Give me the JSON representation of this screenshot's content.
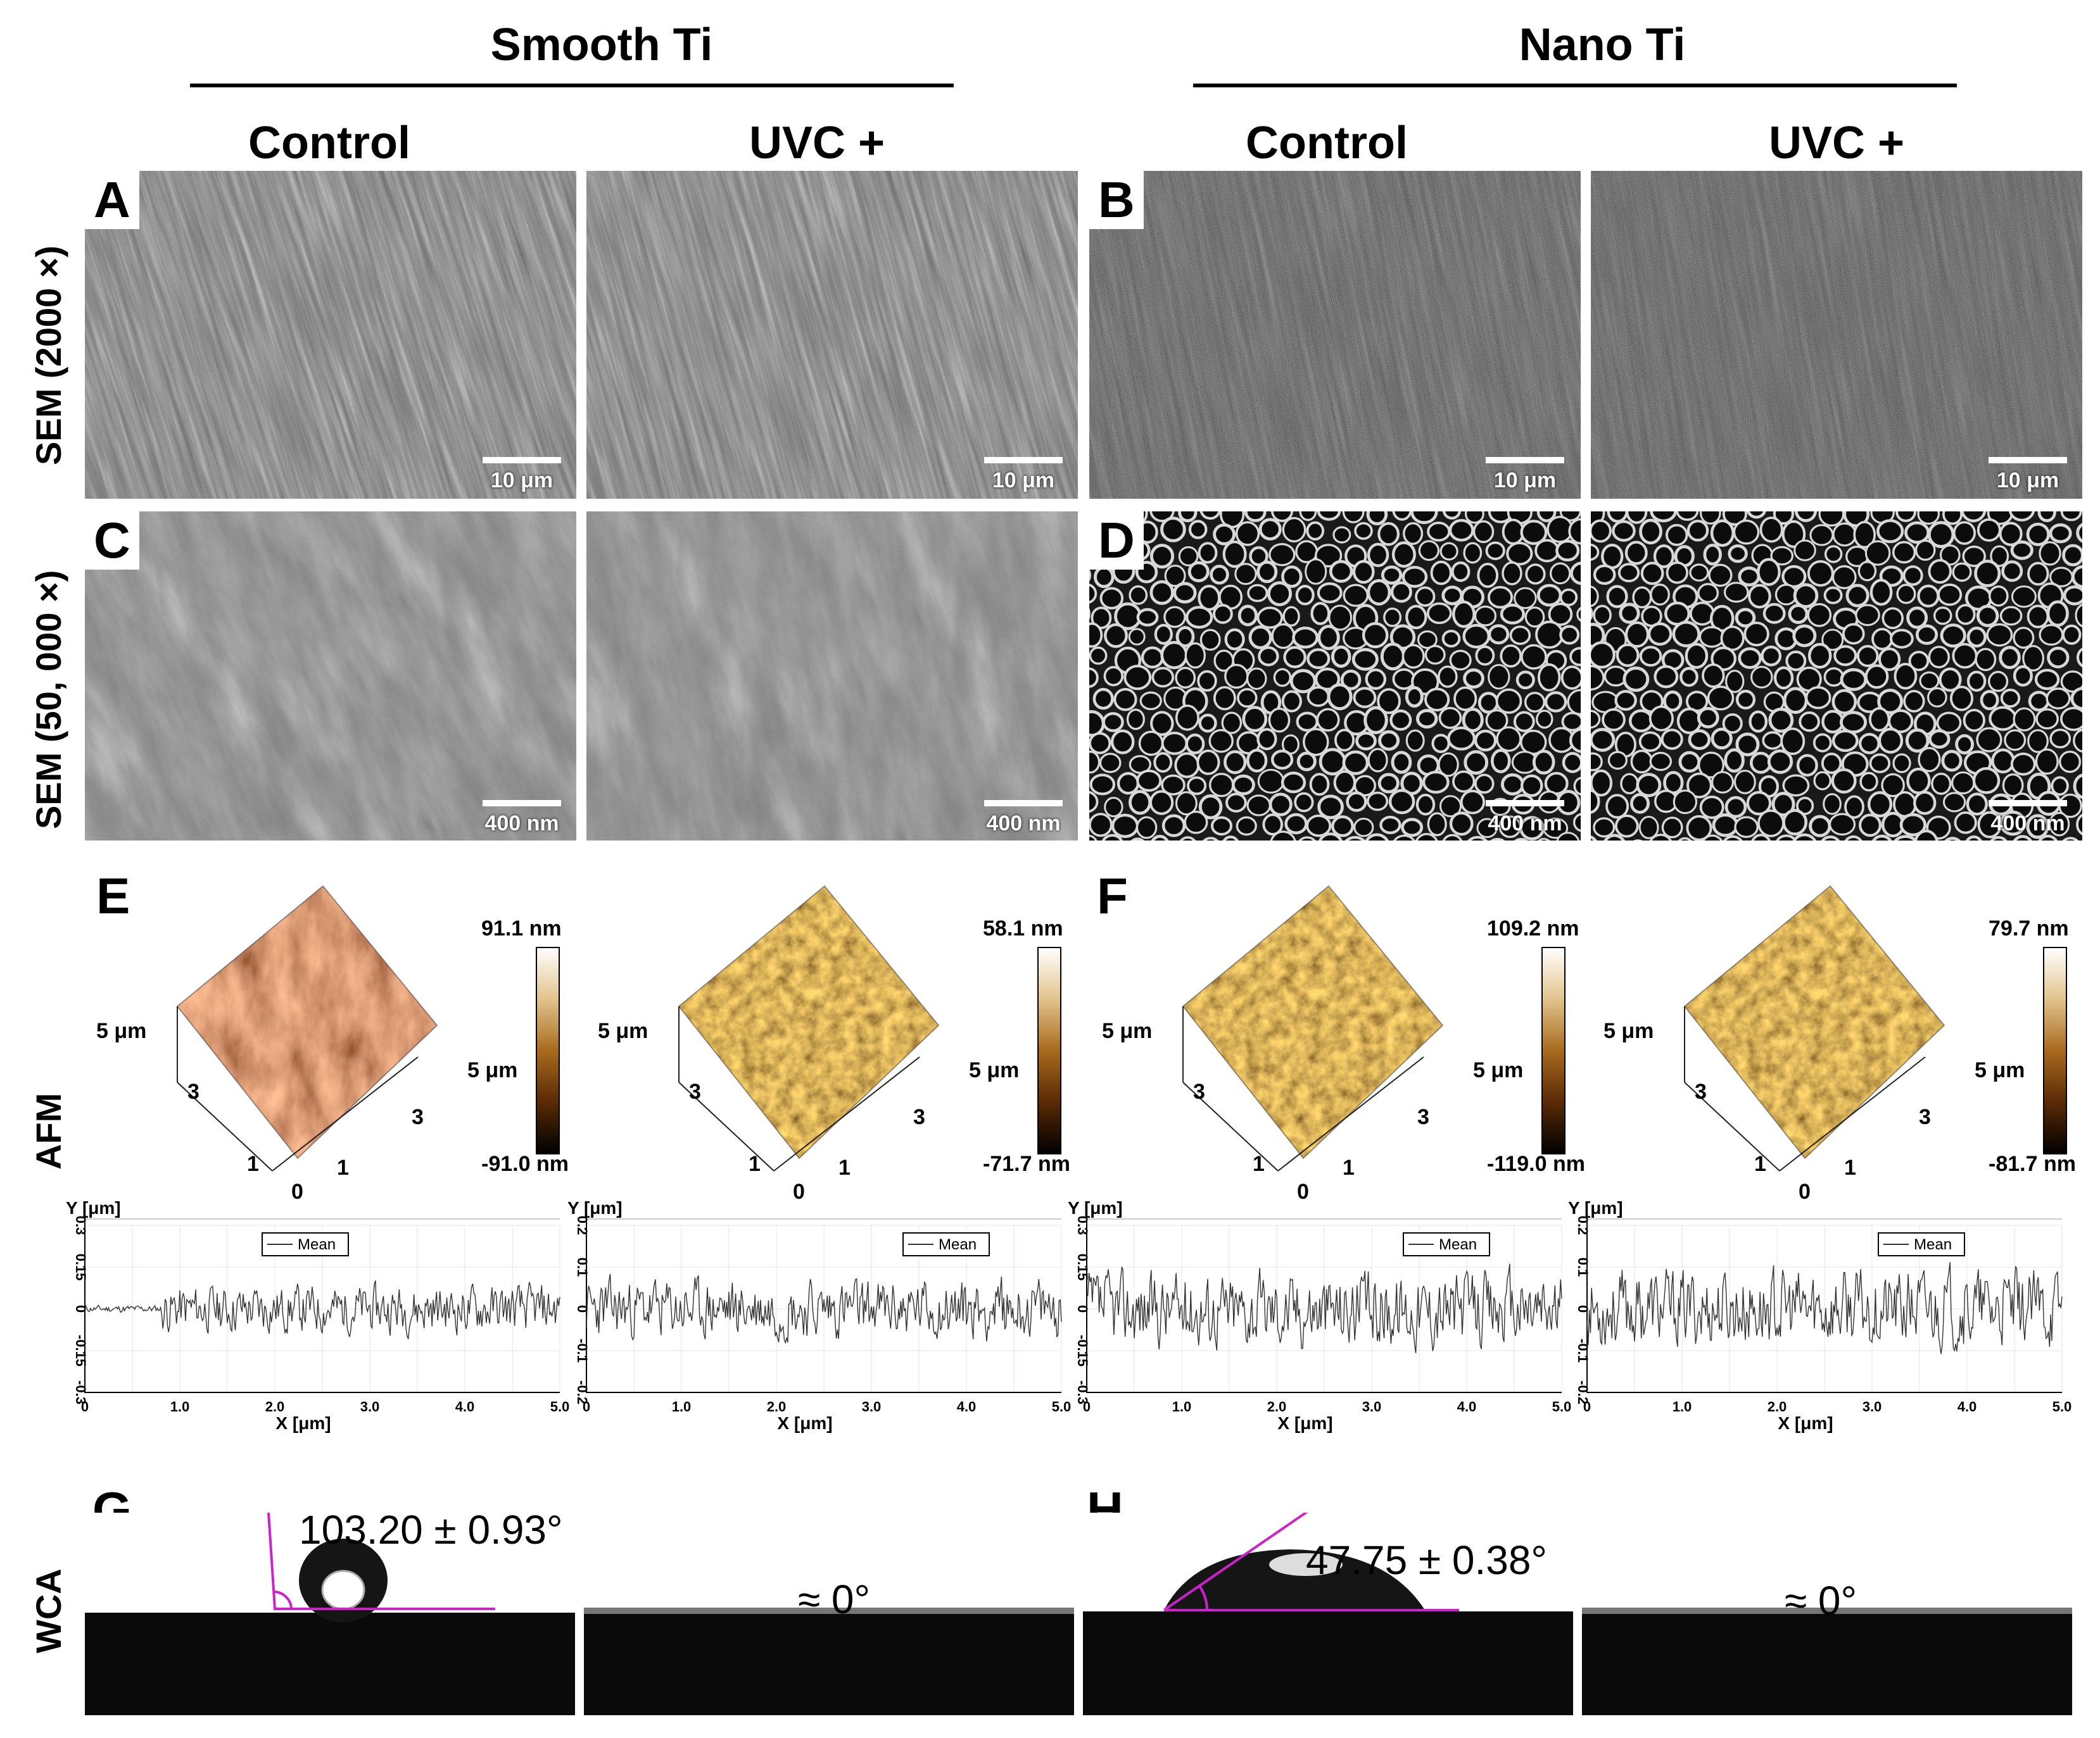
{
  "groups": [
    {
      "title": "Smooth Ti"
    },
    {
      "title": "Nano Ti"
    }
  ],
  "columns": [
    "Control",
    "UVC +",
    "Control",
    "UVC +"
  ],
  "row_labels": {
    "sem_low": "SEM (2000 ×)",
    "sem_high": "SEM (50, 000 ×)",
    "afm": "AFM",
    "wca": "WCA"
  },
  "panel_letters": {
    "A": "A",
    "B": "B",
    "C": "C",
    "D": "D",
    "E": "E",
    "F": "F",
    "G": "G",
    "H": "H"
  },
  "sem_scale": {
    "low": "10 μm",
    "high": "400 nm"
  },
  "afm": [
    {
      "max": "91.1 nm",
      "min": "-91.0 nm",
      "axis_left": "5 μm",
      "axis_right": "5 μm",
      "t3a": "3",
      "t3b": "3",
      "t1a": "1",
      "t1b": "1",
      "t0": "0",
      "palette": "red"
    },
    {
      "max": "58.1 nm",
      "min": "-71.7 nm",
      "axis_left": "5 μm",
      "axis_right": "5 μm",
      "t3a": "3",
      "t3b": "3",
      "t1a": "1",
      "t1b": "1",
      "t0": "0",
      "palette": "gold"
    },
    {
      "max": "109.2 nm",
      "min": "-119.0 nm",
      "axis_left": "5 μm",
      "axis_right": "5 μm",
      "t3a": "3",
      "t3b": "3",
      "t1a": "1",
      "t1b": "1",
      "t0": "0",
      "palette": "gold"
    },
    {
      "max": "79.7 nm",
      "min": "-81.7 nm",
      "axis_left": "5 μm",
      "axis_right": "5 μm",
      "t3a": "3",
      "t3b": "3",
      "t1a": "1",
      "t1b": "1",
      "t0": "0",
      "palette": "gold"
    }
  ],
  "chart_data": [
    {
      "type": "line",
      "ylabel": "Y [μm]",
      "xlabel": "X [μm]",
      "legend": "Mean",
      "xlim": [
        0,
        5
      ],
      "ylim": [
        -0.3,
        0.3
      ],
      "xticks": [
        "0",
        "1.0",
        "2.0",
        "3.0",
        "4.0",
        "5.0"
      ],
      "yticks": [
        "0.3",
        "0.15",
        "0",
        "-0.15",
        "-0.3"
      ],
      "amplitude": 0.12,
      "seed": 11
    },
    {
      "type": "line",
      "ylabel": "Y [μm]",
      "xlabel": "X [μm]",
      "legend": "Mean",
      "xlim": [
        0,
        5
      ],
      "ylim": [
        -0.2,
        0.2
      ],
      "xticks": [
        "0",
        "1.0",
        "2.0",
        "3.0",
        "4.0",
        "5.0"
      ],
      "yticks": [
        "0.2",
        "0.1",
        "0",
        "-0.1",
        "-0.2"
      ],
      "amplitude": 0.1,
      "seed": 23
    },
    {
      "type": "line",
      "ylabel": "Y [μm]",
      "xlabel": "X [μm]",
      "legend": "Mean",
      "xlim": [
        0,
        5
      ],
      "ylim": [
        -0.3,
        0.3
      ],
      "xticks": [
        "0",
        "1.0",
        "2.0",
        "3.0",
        "4.0",
        "5.0"
      ],
      "yticks": [
        "0.3",
        "0.15",
        "0",
        "-0.15",
        "-0.3"
      ],
      "amplitude": 0.19,
      "seed": 37
    },
    {
      "type": "line",
      "ylabel": "Y [μm]",
      "xlabel": "X [μm]",
      "legend": "Mean",
      "xlim": [
        0,
        5
      ],
      "ylim": [
        -0.2,
        0.2
      ],
      "xticks": [
        "0",
        "1.0",
        "2.0",
        "3.0",
        "4.0",
        "5.0"
      ],
      "yticks": [
        "0.2",
        "0.1",
        "0",
        "-0.1",
        "-0.2"
      ],
      "amplitude": 0.13,
      "seed": 53
    }
  ],
  "wca": [
    {
      "angle": "103.20 ± 0.93°"
    },
    {
      "angle": "≈ 0°"
    },
    {
      "angle": "47.75 ± 0.38°"
    },
    {
      "angle": "≈ 0°"
    }
  ],
  "colors": {
    "angle_line": "#cc22cc",
    "substrate": "#0a0a0a"
  }
}
